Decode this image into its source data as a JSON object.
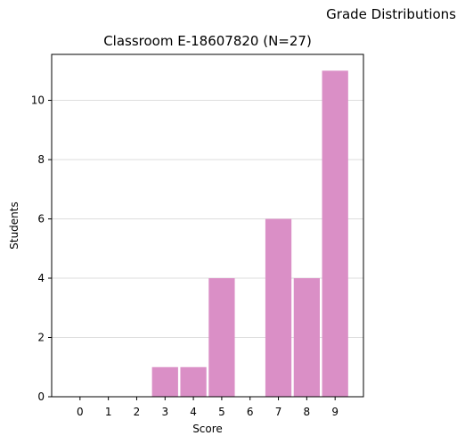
{
  "figure": {
    "suptitle": "Grade Distributions"
  },
  "chart_data": {
    "type": "bar",
    "title": "Classroom E-18607820 (N=27)",
    "xlabel": "Score",
    "ylabel": "Students",
    "categories": [
      0,
      1,
      2,
      3,
      4,
      5,
      6,
      7,
      8,
      9
    ],
    "values": [
      0,
      0,
      0,
      1,
      1,
      4,
      0,
      6,
      4,
      11
    ],
    "xlim": [
      -1,
      10
    ],
    "ylim": [
      0,
      11.55
    ],
    "yticks": [
      0,
      2,
      4,
      6,
      8,
      10
    ],
    "grid": "y",
    "colors": {
      "bar": "#da8fc6",
      "grid": "#dddddd",
      "axes": "#000000"
    }
  }
}
